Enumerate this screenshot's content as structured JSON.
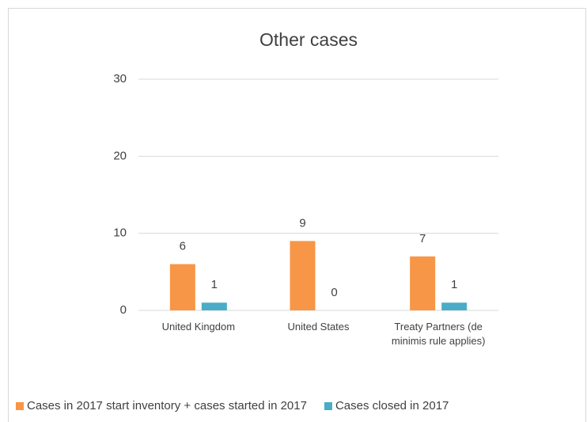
{
  "chart_data": {
    "type": "bar",
    "title": "Other cases",
    "categories": [
      "United Kingdom",
      "United States",
      "Treaty Partners (de minimis rule applies)"
    ],
    "series": [
      {
        "name": "Cases in 2017 start inventory + cases started in 2017",
        "color": "#F79646",
        "values": [
          6,
          9,
          7
        ]
      },
      {
        "name": "Cases closed in 2017",
        "color": "#4BACC6",
        "values": [
          1,
          0,
          1
        ]
      }
    ],
    "ylim": [
      0,
      30
    ],
    "yticks": [
      0,
      10,
      20,
      30
    ],
    "grid": true,
    "legend": "bottom"
  }
}
